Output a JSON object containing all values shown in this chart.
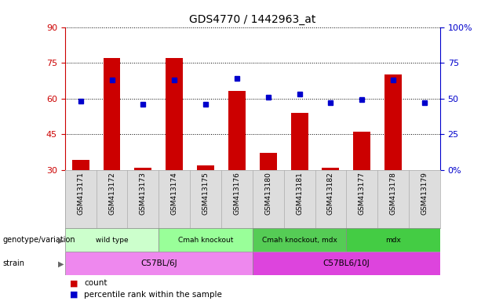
{
  "title": "GDS4770 / 1442963_at",
  "samples": [
    "GSM413171",
    "GSM413172",
    "GSM413173",
    "GSM413174",
    "GSM413175",
    "GSM413176",
    "GSM413180",
    "GSM413181",
    "GSM413182",
    "GSM413177",
    "GSM413178",
    "GSM413179"
  ],
  "counts": [
    34,
    77,
    31,
    77,
    32,
    63,
    37,
    54,
    31,
    46,
    70,
    30
  ],
  "percentiles": [
    48,
    63,
    46,
    63,
    46,
    64,
    51,
    53,
    47,
    49,
    63,
    47
  ],
  "ylim_left": [
    30,
    90
  ],
  "ylim_right": [
    0,
    100
  ],
  "yticks_left": [
    30,
    45,
    60,
    75,
    90
  ],
  "yticks_right": [
    0,
    25,
    50,
    75,
    100
  ],
  "ytick_labels_right": [
    "0%",
    "25",
    "50",
    "75",
    "100%"
  ],
  "genotype_groups": [
    {
      "label": "wild type",
      "start": 0,
      "end": 3,
      "color": "#ccffcc"
    },
    {
      "label": "Cmah knockout",
      "start": 3,
      "end": 6,
      "color": "#99ff99"
    },
    {
      "label": "Cmah knockout, mdx",
      "start": 6,
      "end": 9,
      "color": "#55cc55"
    },
    {
      "label": "mdx",
      "start": 9,
      "end": 12,
      "color": "#44cc44"
    }
  ],
  "strain_groups": [
    {
      "label": "C57BL/6J",
      "start": 0,
      "end": 6,
      "color": "#ee88ee"
    },
    {
      "label": "C57BL6/10J",
      "start": 6,
      "end": 12,
      "color": "#dd44dd"
    }
  ],
  "bar_color": "#cc0000",
  "dot_color": "#0000cc",
  "grid_color": "#000000",
  "background_color": "#ffffff",
  "left_axis_color": "#cc0000",
  "right_axis_color": "#0000cc",
  "label_bg_color": "#dddddd",
  "genotype_label": "genotype/variation",
  "strain_label": "strain",
  "legend_count": "count",
  "legend_pct": "percentile rank within the sample"
}
